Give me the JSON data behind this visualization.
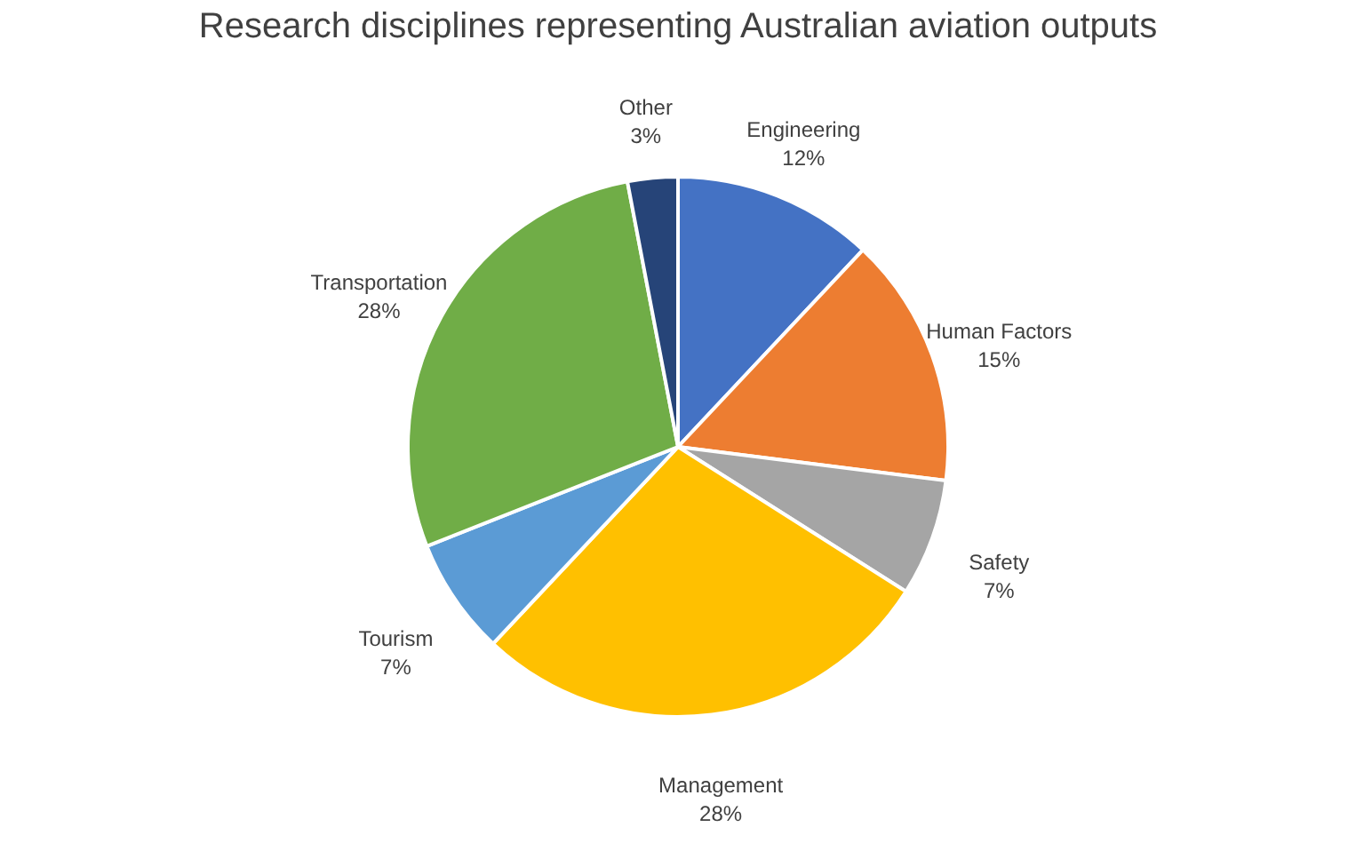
{
  "chart_data": {
    "type": "pie",
    "title": "Research disciplines representing Australian aviation outputs",
    "categories": [
      "Engineering",
      "Human Factors",
      "Safety",
      "Management",
      "Tourism",
      "Transportation",
      "Other"
    ],
    "values": [
      12,
      15,
      7,
      28,
      7,
      28,
      3
    ],
    "value_labels": [
      "12%",
      "15%",
      "7%",
      "28%",
      "7%",
      "28%",
      "3%"
    ],
    "colors": [
      "#4472c4",
      "#ed7d31",
      "#a5a5a5",
      "#ffc000",
      "#5b9bd5",
      "#70ad47",
      "#264478"
    ],
    "legend": false
  }
}
